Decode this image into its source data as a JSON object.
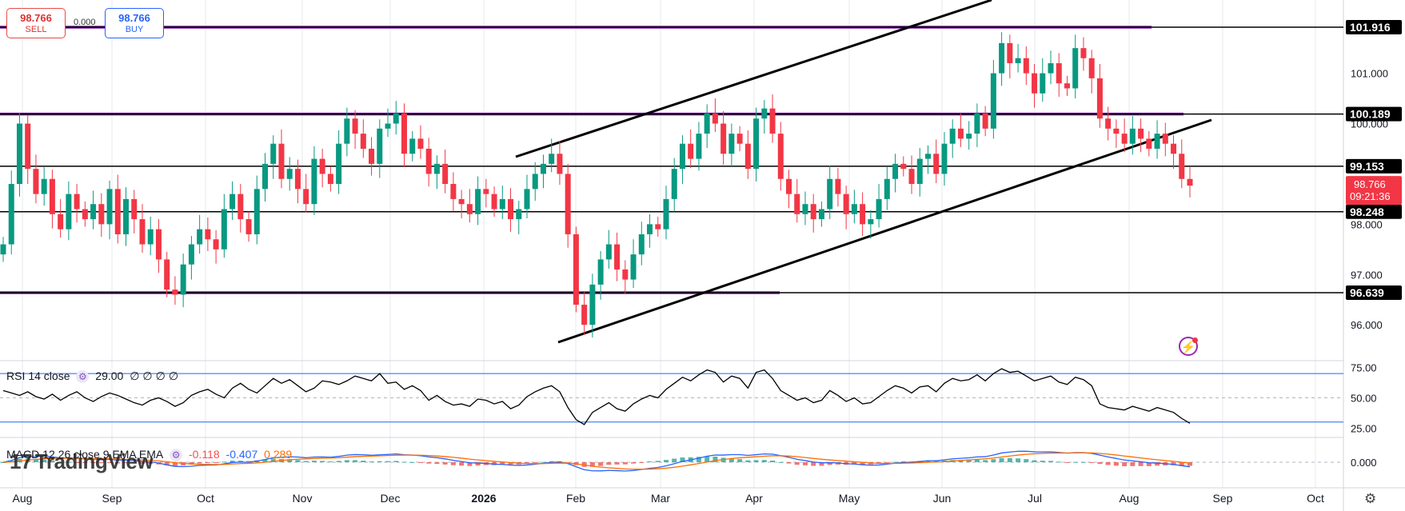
{
  "trade": {
    "sell_price": "98.766",
    "sell_label": "SELL",
    "buy_price": "98.766",
    "buy_label": "BUY",
    "spread": "0.000"
  },
  "chart_data": {
    "type": "candlestick",
    "price_axis": {
      "min": 95.5,
      "max": 102.2,
      "ticks": [
        "101.000",
        "100.000",
        "98.000",
        "97.000",
        "96.000"
      ]
    },
    "time_axis": [
      "Aug",
      "Sep",
      "Oct",
      "Nov",
      "Dec",
      "2026",
      "Feb",
      "Mar",
      "Apr",
      "May",
      "Jun",
      "Jul",
      "Aug",
      "Sep",
      "Oct"
    ],
    "current_price": {
      "value": "98.766",
      "countdown": "09:21:36"
    },
    "horizontal_levels": [
      {
        "value": 101.916,
        "label": "101.916"
      },
      {
        "value": 100.189,
        "label": "100.189"
      },
      {
        "value": 99.153,
        "label": "99.153"
      },
      {
        "value": 98.248,
        "label": "98.248"
      },
      {
        "value": 96.639,
        "label": "96.639"
      }
    ],
    "closes": [
      97.6,
      98.8,
      100.0,
      99.1,
      98.6,
      98.9,
      98.2,
      97.9,
      98.6,
      98.3,
      98.1,
      98.4,
      98.0,
      98.7,
      97.8,
      98.5,
      98.1,
      97.6,
      97.9,
      97.3,
      96.7,
      96.6,
      97.2,
      97.6,
      97.9,
      97.7,
      97.5,
      98.3,
      98.6,
      98.1,
      97.8,
      98.7,
      99.2,
      99.6,
      98.9,
      99.1,
      98.7,
      98.4,
      99.3,
      99.0,
      98.8,
      99.6,
      100.1,
      99.8,
      99.5,
      99.2,
      99.9,
      100.0,
      100.2,
      99.4,
      99.7,
      99.5,
      99.0,
      99.2,
      98.8,
      98.5,
      98.4,
      98.2,
      98.7,
      98.6,
      98.3,
      98.5,
      98.1,
      98.3,
      98.7,
      99.0,
      99.2,
      99.4,
      99.0,
      97.8,
      96.4,
      96.0,
      96.8,
      97.3,
      97.6,
      97.1,
      96.9,
      97.4,
      97.8,
      98.0,
      97.9,
      98.5,
      99.1,
      99.6,
      99.3,
      99.8,
      100.2,
      100.0,
      99.4,
      99.8,
      99.6,
      99.1,
      100.1,
      100.3,
      99.8,
      98.9,
      98.6,
      98.2,
      98.4,
      98.1,
      98.3,
      98.9,
      98.6,
      98.2,
      98.4,
      98.0,
      98.1,
      98.5,
      98.9,
      99.2,
      99.1,
      98.8,
      99.3,
      99.4,
      99.0,
      99.6,
      99.9,
      99.7,
      99.8,
      100.2,
      99.9,
      101.0,
      101.6,
      101.2,
      101.3,
      101.0,
      100.6,
      101.0,
      101.2,
      100.8,
      100.7,
      101.5,
      101.3,
      100.9,
      100.1,
      99.9,
      99.8,
      99.6,
      99.9,
      99.7,
      99.5,
      99.8,
      99.6,
      99.4,
      98.9,
      98.766
    ],
    "rsi": {
      "name": "RSI",
      "params": "14 close",
      "value": "29.00",
      "extra": [
        "∅",
        "∅",
        "∅",
        "∅"
      ],
      "levels": [
        70,
        30
      ],
      "axis_ticks": [
        "75.00",
        "50.00",
        "25.00"
      ],
      "values": [
        56,
        54,
        52,
        55,
        51,
        49,
        53,
        48,
        52,
        55,
        50,
        47,
        51,
        54,
        52,
        49,
        46,
        44,
        48,
        50,
        47,
        43,
        46,
        52,
        55,
        57,
        53,
        50,
        58,
        62,
        57,
        54,
        60,
        66,
        62,
        65,
        60,
        55,
        58,
        64,
        63,
        61,
        64,
        68,
        66,
        64,
        70,
        62,
        63,
        57,
        60,
        56,
        48,
        52,
        47,
        44,
        45,
        43,
        49,
        48,
        45,
        47,
        41,
        44,
        51,
        55,
        58,
        60,
        55,
        42,
        32,
        28,
        38,
        42,
        46,
        41,
        39,
        45,
        49,
        52,
        50,
        57,
        62,
        67,
        64,
        69,
        73,
        71,
        63,
        68,
        66,
        58,
        71,
        73,
        66,
        56,
        52,
        48,
        50,
        46,
        48,
        56,
        52,
        47,
        50,
        45,
        46,
        51,
        56,
        60,
        58,
        54,
        59,
        60,
        55,
        62,
        66,
        64,
        65,
        69,
        64,
        70,
        74,
        71,
        72,
        68,
        64,
        66,
        68,
        63,
        61,
        67,
        65,
        60,
        45,
        42,
        41,
        40,
        43,
        41,
        39,
        42,
        40,
        38,
        33,
        29
      ]
    },
    "macd": {
      "name": "MACD",
      "params": "12 26 close 9 EMA EMA",
      "values": [
        "-0.118",
        "-0.407",
        "0.289"
      ],
      "colors": [
        "#ef5350",
        "#2962ff",
        "#ff6d00"
      ],
      "axis_ticks": [
        "0.000"
      ]
    },
    "colors": {
      "up": "#089981",
      "down": "#f23645",
      "level": "#000000",
      "support_purple": "#7b1fa2",
      "rsi_band": "#2962ff"
    }
  },
  "icons": {
    "alert": "alert-icon",
    "settings": "settings-icon"
  },
  "logo": "TradingView"
}
